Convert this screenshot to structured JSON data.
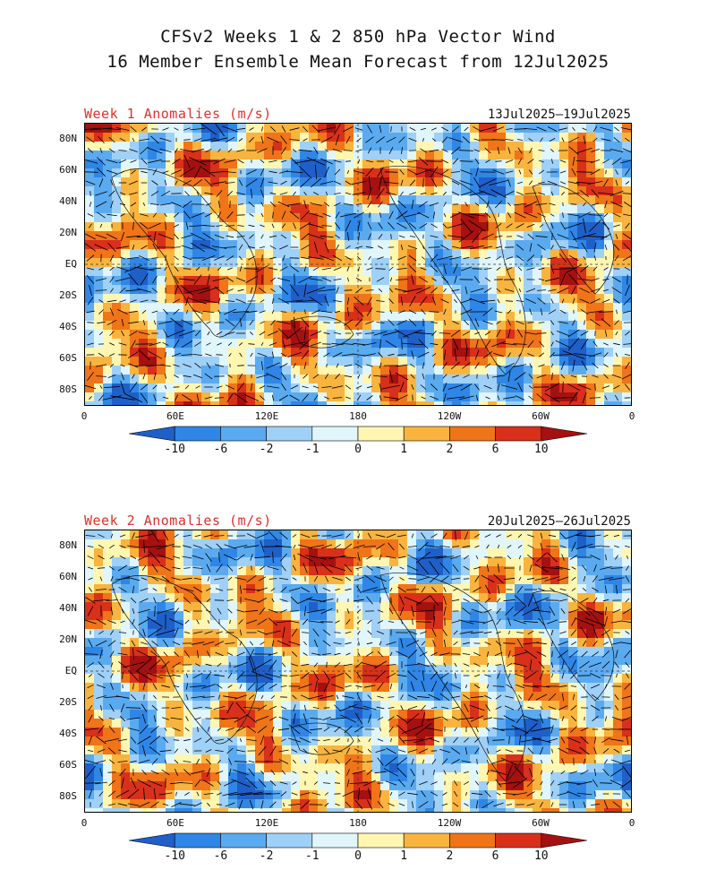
{
  "header": {
    "title_line1": "CFSv2 Weeks 1 & 2 850 hPa Vector Wind",
    "title_line2": "16 Member Ensemble Mean Forecast from 12Jul2025"
  },
  "lat_ticks": [
    "80N",
    "60N",
    "40N",
    "20N",
    "EQ",
    "20S",
    "40S",
    "60S",
    "80S"
  ],
  "lon_ticks": [
    "0",
    "60E",
    "120E",
    "180",
    "120W",
    "60W",
    "0"
  ],
  "colorbar": {
    "labels": [
      "-10",
      "-6",
      "-2",
      "-1",
      "0",
      "1",
      "2",
      "6",
      "10"
    ],
    "colors": [
      "#1f5fc8",
      "#2f86e6",
      "#5aaaf0",
      "#9fd0f7",
      "#e0f6fb",
      "#fff6b2",
      "#f8b43e",
      "#f07418",
      "#d8301a",
      "#a51010"
    ]
  },
  "panels": [
    {
      "label": "Week 1 Anomalies (m/s)",
      "dates": "13Jul2025—19Jul2025"
    },
    {
      "label": "Week 2 Anomalies (m/s)",
      "dates": "20Jul2025—26Jul2025"
    }
  ]
}
